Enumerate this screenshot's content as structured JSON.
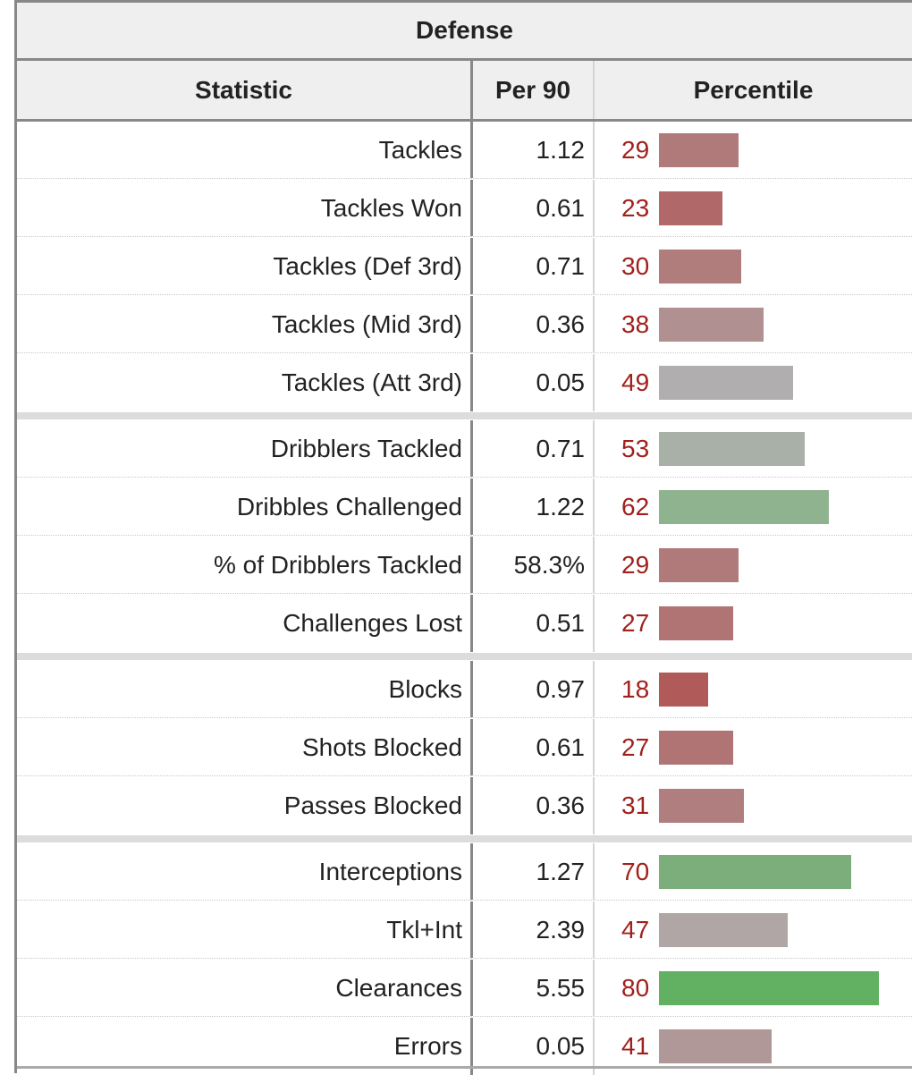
{
  "table": {
    "title": "Defense",
    "headers": {
      "statistic": "Statistic",
      "per90": "Per 90",
      "percentile": "Percentile"
    },
    "groups": [
      [
        {
          "stat": "Tackles",
          "per90": "1.12",
          "percentile": "29",
          "color": "#b07a7a"
        },
        {
          "stat": "Tackles Won",
          "per90": "0.61",
          "percentile": "23",
          "color": "#b06868"
        },
        {
          "stat": "Tackles (Def 3rd)",
          "per90": "0.71",
          "percentile": "30",
          "color": "#b07c7c"
        },
        {
          "stat": "Tackles (Mid 3rd)",
          "per90": "0.36",
          "percentile": "38",
          "color": "#b09090"
        },
        {
          "stat": "Tackles (Att 3rd)",
          "per90": "0.05",
          "percentile": "49",
          "color": "#b0aeae"
        }
      ],
      [
        {
          "stat": "Dribblers Tackled",
          "per90": "0.71",
          "percentile": "53",
          "color": "#a8b0a8"
        },
        {
          "stat": "Dribbles Challenged",
          "per90": "1.22",
          "percentile": "62",
          "color": "#8fb28f"
        },
        {
          "stat": "% of Dribblers Tackled",
          "per90": "58.3%",
          "percentile": "29",
          "color": "#b07a7a"
        },
        {
          "stat": "Challenges Lost",
          "per90": "0.51",
          "percentile": "27",
          "color": "#b07474"
        }
      ],
      [
        {
          "stat": "Blocks",
          "per90": "0.97",
          "percentile": "18",
          "color": "#b05a5a"
        },
        {
          "stat": "Shots Blocked",
          "per90": "0.61",
          "percentile": "27",
          "color": "#b07474"
        },
        {
          "stat": "Passes Blocked",
          "per90": "0.36",
          "percentile": "31",
          "color": "#b07e7e"
        }
      ],
      [
        {
          "stat": "Interceptions",
          "per90": "1.27",
          "percentile": "70",
          "color": "#7cae7c"
        },
        {
          "stat": "Tkl+Int",
          "per90": "2.39",
          "percentile": "47",
          "color": "#b0a6a6"
        },
        {
          "stat": "Clearances",
          "per90": "5.55",
          "percentile": "80",
          "color": "#62b062"
        },
        {
          "stat": "Errors",
          "per90": "0.05",
          "percentile": "41",
          "color": "#b09898"
        }
      ]
    ]
  }
}
